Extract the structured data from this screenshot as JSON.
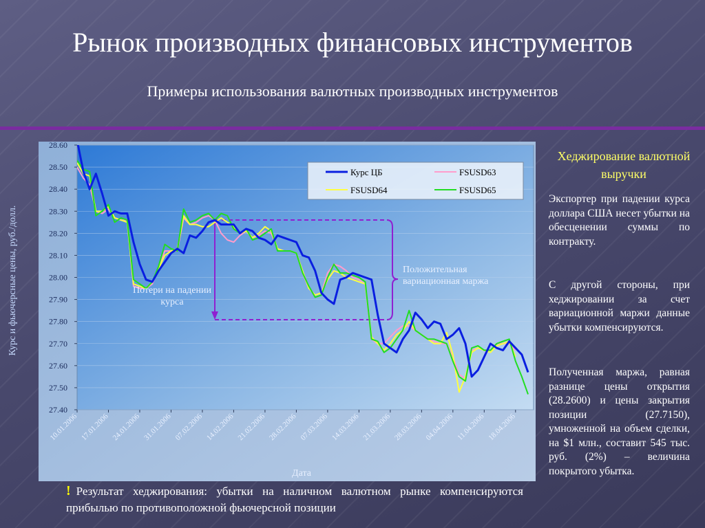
{
  "header": {
    "title": "Рынок производных финансовых инструментов",
    "subtitle": "Примеры использования валютных производных инструментов"
  },
  "chart_data": {
    "type": "line",
    "y_label": "Курс и фьючерсные цены, руб./долл.",
    "x_label": "Дата",
    "categories": [
      "10.01.2006",
      null,
      null,
      null,
      null,
      "17.01.2006",
      null,
      null,
      null,
      null,
      "24.01.2006",
      null,
      null,
      null,
      null,
      "31.01.2006",
      null,
      null,
      null,
      null,
      "07.02.2006",
      null,
      null,
      null,
      null,
      "14.02.2006",
      null,
      null,
      null,
      null,
      "21.02.2006",
      null,
      null,
      null,
      null,
      "28.02.2006",
      null,
      null,
      null,
      null,
      "07.03.2006",
      null,
      null,
      null,
      null,
      "14.03.2006",
      null,
      null,
      null,
      null,
      "21.03.2006",
      null,
      null,
      null,
      null,
      "28.03.2006",
      null,
      null,
      null,
      null,
      "04.04.2006",
      null,
      null,
      null,
      null,
      "11.04.2006",
      null,
      null,
      null,
      null,
      "18.04.2006",
      null,
      null
    ],
    "series": [
      {
        "name": "Курс ЦБ",
        "color": "#0a1fe0",
        "values": [
          28.62,
          28.48,
          28.4,
          28.47,
          28.38,
          28.28,
          28.3,
          28.29,
          28.29,
          28.16,
          28.06,
          27.99,
          27.98,
          28.03,
          28.07,
          28.11,
          28.13,
          28.11,
          28.19,
          28.18,
          28.21,
          28.25,
          28.26,
          28.24,
          28.24,
          28.24,
          28.2,
          28.22,
          28.21,
          28.18,
          28.17,
          28.15,
          28.19,
          28.18,
          28.17,
          28.16,
          28.1,
          28.09,
          28.03,
          27.93,
          27.9,
          27.88,
          27.99,
          28.0,
          28.02,
          28.01,
          28.0,
          27.99,
          27.83,
          27.7,
          27.68,
          27.66,
          27.72,
          27.76,
          27.84,
          27.81,
          27.77,
          27.8,
          27.79,
          27.72,
          27.74,
          27.77,
          27.7,
          27.55,
          27.58,
          27.64,
          27.7,
          27.68,
          27.67,
          27.71,
          27.68,
          27.65,
          27.57
        ]
      },
      {
        "name": "FSUSD63",
        "color": "#ff9ccc",
        "values": [
          28.5,
          28.45,
          28.42,
          28.3,
          28.29,
          28.31,
          28.27,
          28.26,
          28.26,
          27.96,
          27.95,
          27.95,
          27.97,
          28.04,
          28.12,
          28.12,
          28.12,
          28.27,
          28.24,
          28.25,
          28.27,
          28.28,
          28.26,
          28.2,
          28.17,
          28.16,
          28.19,
          28.21,
          28.18,
          28.19,
          28.21,
          28.2,
          28.13,
          28.12,
          28.12,
          28.11,
          28.02,
          27.95,
          27.92,
          27.93,
          28.02,
          28.06,
          28.05,
          28.03,
          28.0,
          27.99,
          27.97,
          27.72,
          27.7,
          27.7,
          27.73,
          27.76,
          27.78,
          27.78,
          27.76,
          27.74,
          27.72,
          27.71,
          27.7,
          27.7,
          27.64,
          27.56,
          27.54,
          27.67,
          27.68,
          27.67,
          27.67,
          27.7,
          27.7,
          27.7,
          27.67,
          null,
          null
        ]
      },
      {
        "name": "FSUSD64",
        "color": "#ffff40",
        "values": [
          28.52,
          28.47,
          28.46,
          28.3,
          28.3,
          28.32,
          28.27,
          28.26,
          28.25,
          27.97,
          27.96,
          27.95,
          27.98,
          28.04,
          28.1,
          28.12,
          28.13,
          28.28,
          28.24,
          28.24,
          28.23,
          28.23,
          28.25,
          28.27,
          28.25,
          28.23,
          28.2,
          28.21,
          28.18,
          28.2,
          28.23,
          28.21,
          28.13,
          28.12,
          28.12,
          28.11,
          28.03,
          27.95,
          27.92,
          27.93,
          27.99,
          28.03,
          28.02,
          28.0,
          27.99,
          27.98,
          27.97,
          27.73,
          27.7,
          27.67,
          27.7,
          27.74,
          27.76,
          27.8,
          27.76,
          27.74,
          27.72,
          27.7,
          27.7,
          27.75,
          27.65,
          27.48,
          27.55,
          27.66,
          27.68,
          27.67,
          27.66,
          27.69,
          27.7,
          27.71,
          27.64,
          null,
          null
        ]
      },
      {
        "name": "FSUSD65",
        "color": "#22dd22",
        "values": [
          28.53,
          28.49,
          28.48,
          28.28,
          28.3,
          28.33,
          28.25,
          28.27,
          28.26,
          27.99,
          27.97,
          27.95,
          27.98,
          28.05,
          28.15,
          28.13,
          28.12,
          28.31,
          28.25,
          28.26,
          28.28,
          28.29,
          28.26,
          28.29,
          28.28,
          28.22,
          28.2,
          28.22,
          28.17,
          28.18,
          28.2,
          28.22,
          28.12,
          28.12,
          28.12,
          28.11,
          28.02,
          27.96,
          27.91,
          27.92,
          28.0,
          28.06,
          28.02,
          28.02,
          28.01,
          28.0,
          27.98,
          27.72,
          27.71,
          27.66,
          27.68,
          27.72,
          27.76,
          27.85,
          27.76,
          27.74,
          27.72,
          27.72,
          27.71,
          27.7,
          27.62,
          27.55,
          27.53,
          27.68,
          27.69,
          27.67,
          27.67,
          27.7,
          27.71,
          27.72,
          27.62,
          27.55,
          27.47
        ]
      }
    ],
    "ylim": [
      27.4,
      28.6
    ],
    "yticks": [
      {
        "value": 27.4,
        "label": "27.40"
      },
      {
        "value": 27.5,
        "label": "27.50"
      },
      {
        "value": 27.6,
        "label": "27.60"
      },
      {
        "value": 27.7,
        "label": "27.70"
      },
      {
        "value": 27.8,
        "label": "27.80"
      },
      {
        "value": 27.9,
        "label": "27.90"
      },
      {
        "value": 28.0,
        "label": "28.00"
      },
      {
        "value": 28.1,
        "label": "28.10"
      },
      {
        "value": 28.2,
        "label": "28.20"
      },
      {
        "value": 28.3,
        "label": "28.30"
      },
      {
        "value": 28.4,
        "label": "28.40"
      },
      {
        "value": 28.5,
        "label": "28.50"
      },
      {
        "value": 28.6,
        "label": "28.60"
      }
    ],
    "legend": "upper right",
    "annotations": [
      "Потери на падении курса",
      "Положительная вариационная маржа"
    ]
  },
  "side": {
    "heading": "Хеджирование валютной выручки",
    "paragraphs": [
      "Экспортер при падении курса доллара США несет убытки на обесценении суммы по контракту.",
      "С другой стороны, при хеджировании за счет вариационной маржи данные убытки компенсируются.",
      "Полученная маржа, равная разнице цены открытия (28.2600) и цены закрытия позиции (27.7150), умноженной на объем сделки, на $1 млн., составит 545 тыс. руб. (2%) – величина покрытого убытка."
    ]
  },
  "footer": {
    "mark": "!",
    "text": "Результат хеджирования: убытки на наличном валютном рынке компенсируются прибылью по противоположной фьючерсной позиции"
  }
}
